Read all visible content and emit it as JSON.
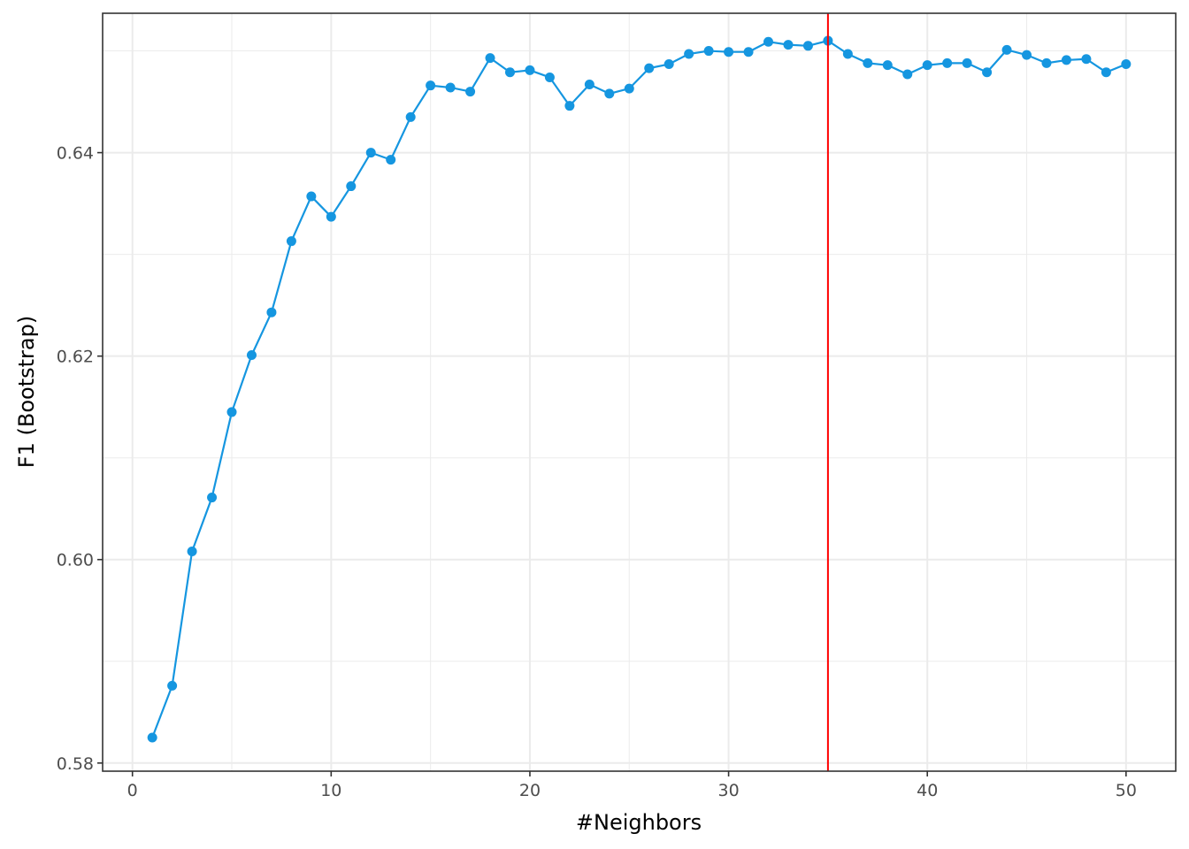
{
  "chart_data": {
    "type": "line",
    "title": "",
    "xlabel": "#Neighbors",
    "ylabel": "F1 (Bootstrap)",
    "xlim": [
      -1.5,
      52.5
    ],
    "ylim": [
      0.5792,
      0.6537
    ],
    "x_ticks": [
      0,
      10,
      20,
      30,
      40,
      50
    ],
    "x_tick_labels": [
      "0",
      "10",
      "20",
      "30",
      "40",
      "50"
    ],
    "y_ticks": [
      0.58,
      0.6,
      0.62,
      0.64
    ],
    "y_tick_labels": [
      "0.58",
      "0.60",
      "0.62",
      "0.64"
    ],
    "x_minor_ticks": [
      5,
      15,
      25,
      35,
      45
    ],
    "y_minor_ticks": [
      0.59,
      0.61,
      0.63,
      0.65
    ],
    "grid": true,
    "legend": "none",
    "series": [
      {
        "color": "#1596e0",
        "x": [
          1,
          2,
          3,
          4,
          5,
          6,
          7,
          8,
          9,
          10,
          11,
          12,
          13,
          14,
          15,
          16,
          17,
          18,
          19,
          20,
          21,
          22,
          23,
          24,
          25,
          26,
          27,
          28,
          29,
          30,
          31,
          32,
          33,
          34,
          35,
          36,
          37,
          38,
          39,
          40,
          41,
          42,
          43,
          44,
          45,
          46,
          47,
          48,
          49,
          50
        ],
        "y": [
          0.5825,
          0.5876,
          0.6008,
          0.6061,
          0.6145,
          0.6201,
          0.6243,
          0.6313,
          0.6357,
          0.6337,
          0.6367,
          0.64,
          0.6393,
          0.6435,
          0.6466,
          0.6464,
          0.646,
          0.6493,
          0.6479,
          0.6481,
          0.6474,
          0.6446,
          0.6467,
          0.6458,
          0.6463,
          0.6483,
          0.6487,
          0.6497,
          0.65,
          0.6499,
          0.6499,
          0.6509,
          0.6506,
          0.6505,
          0.651,
          0.6497,
          0.6488,
          0.6486,
          0.6477,
          0.6486,
          0.6488,
          0.6488,
          0.6479,
          0.6501,
          0.6496,
          0.6488,
          0.6491,
          0.6492,
          0.6479,
          0.6487
        ]
      }
    ],
    "vline": {
      "x": 35,
      "color": "#ff0000"
    }
  }
}
